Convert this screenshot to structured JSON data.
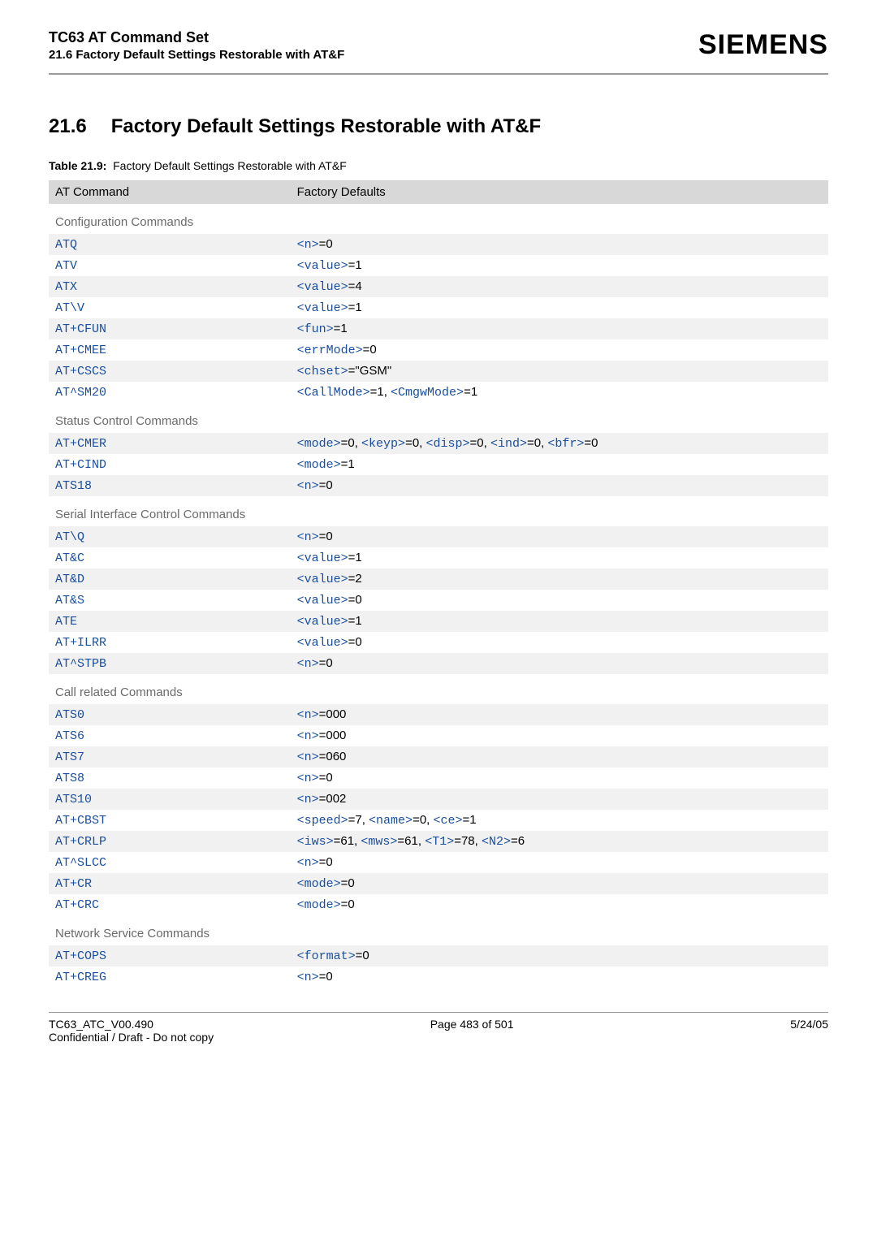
{
  "header": {
    "title": "TC63 AT Command Set",
    "subtitle": "21.6 Factory Default Settings Restorable with AT&F",
    "logo": "SIEMENS"
  },
  "section": {
    "number": "21.6",
    "title": "Factory Default Settings Restorable with AT&F"
  },
  "table_caption": {
    "label": "Table 21.9:",
    "text": "Factory Default Settings Restorable with AT&F"
  },
  "table": {
    "headers": [
      "AT Command",
      "Factory Defaults"
    ],
    "groups": [
      {
        "name": "Configuration Commands",
        "rows": [
          {
            "cmd": "ATQ",
            "parts": [
              {
                "t": "tag",
                "v": "<n>"
              },
              {
                "t": "plain",
                "v": "=0"
              }
            ]
          },
          {
            "cmd": "ATV",
            "parts": [
              {
                "t": "tag",
                "v": "<value>"
              },
              {
                "t": "plain",
                "v": "=1"
              }
            ]
          },
          {
            "cmd": "ATX",
            "parts": [
              {
                "t": "tag",
                "v": "<value>"
              },
              {
                "t": "plain",
                "v": "=4"
              }
            ]
          },
          {
            "cmd": "AT\\V",
            "parts": [
              {
                "t": "tag",
                "v": "<value>"
              },
              {
                "t": "plain",
                "v": "=1"
              }
            ]
          },
          {
            "cmd": "AT+CFUN",
            "parts": [
              {
                "t": "tag",
                "v": "<fun>"
              },
              {
                "t": "plain",
                "v": "=1"
              }
            ]
          },
          {
            "cmd": "AT+CMEE",
            "parts": [
              {
                "t": "tag",
                "v": "<errMode>"
              },
              {
                "t": "plain",
                "v": "=0"
              }
            ]
          },
          {
            "cmd": "AT+CSCS",
            "parts": [
              {
                "t": "tag",
                "v": "<chset>"
              },
              {
                "t": "plain",
                "v": "=\"GSM\""
              }
            ]
          },
          {
            "cmd": "AT^SM20",
            "parts": [
              {
                "t": "tag",
                "v": "<CallMode>"
              },
              {
                "t": "plain",
                "v": "=1, "
              },
              {
                "t": "tag",
                "v": "<CmgwMode>"
              },
              {
                "t": "plain",
                "v": "=1"
              }
            ]
          }
        ]
      },
      {
        "name": "Status Control Commands",
        "rows": [
          {
            "cmd": "AT+CMER",
            "parts": [
              {
                "t": "tag",
                "v": "<mode>"
              },
              {
                "t": "plain",
                "v": "=0, "
              },
              {
                "t": "tag",
                "v": "<keyp>"
              },
              {
                "t": "plain",
                "v": "=0, "
              },
              {
                "t": "tag",
                "v": "<disp>"
              },
              {
                "t": "plain",
                "v": "=0, "
              },
              {
                "t": "tag",
                "v": "<ind>"
              },
              {
                "t": "plain",
                "v": "=0, "
              },
              {
                "t": "tag",
                "v": "<bfr>"
              },
              {
                "t": "plain",
                "v": "=0"
              }
            ]
          },
          {
            "cmd": "AT+CIND",
            "parts": [
              {
                "t": "tag",
                "v": "<mode>"
              },
              {
                "t": "plain",
                "v": "=1"
              }
            ]
          },
          {
            "cmd": "ATS18",
            "parts": [
              {
                "t": "tag",
                "v": "<n>"
              },
              {
                "t": "plain",
                "v": "=0"
              }
            ]
          }
        ]
      },
      {
        "name": "Serial Interface Control Commands",
        "rows": [
          {
            "cmd": "AT\\Q",
            "parts": [
              {
                "t": "tag",
                "v": "<n>"
              },
              {
                "t": "plain",
                "v": "=0"
              }
            ]
          },
          {
            "cmd": "AT&C",
            "parts": [
              {
                "t": "tag",
                "v": "<value>"
              },
              {
                "t": "plain",
                "v": "=1"
              }
            ]
          },
          {
            "cmd": "AT&D",
            "parts": [
              {
                "t": "tag",
                "v": "<value>"
              },
              {
                "t": "plain",
                "v": "=2"
              }
            ]
          },
          {
            "cmd": "AT&S",
            "parts": [
              {
                "t": "tag",
                "v": "<value>"
              },
              {
                "t": "plain",
                "v": "=0"
              }
            ]
          },
          {
            "cmd": "ATE",
            "parts": [
              {
                "t": "tag",
                "v": "<value>"
              },
              {
                "t": "plain",
                "v": "=1"
              }
            ]
          },
          {
            "cmd": "AT+ILRR",
            "parts": [
              {
                "t": "tag",
                "v": "<value>"
              },
              {
                "t": "plain",
                "v": "=0"
              }
            ]
          },
          {
            "cmd": "AT^STPB",
            "parts": [
              {
                "t": "tag",
                "v": "<n>"
              },
              {
                "t": "plain",
                "v": "=0"
              }
            ]
          }
        ]
      },
      {
        "name": "Call related Commands",
        "rows": [
          {
            "cmd": "ATS0",
            "parts": [
              {
                "t": "tag",
                "v": "<n>"
              },
              {
                "t": "plain",
                "v": "=000"
              }
            ]
          },
          {
            "cmd": "ATS6",
            "parts": [
              {
                "t": "tag",
                "v": "<n>"
              },
              {
                "t": "plain",
                "v": "=000"
              }
            ]
          },
          {
            "cmd": "ATS7",
            "parts": [
              {
                "t": "tag",
                "v": "<n>"
              },
              {
                "t": "plain",
                "v": "=060"
              }
            ]
          },
          {
            "cmd": "ATS8",
            "parts": [
              {
                "t": "tag",
                "v": "<n>"
              },
              {
                "t": "plain",
                "v": "=0"
              }
            ]
          },
          {
            "cmd": "ATS10",
            "parts": [
              {
                "t": "tag",
                "v": "<n>"
              },
              {
                "t": "plain",
                "v": "=002"
              }
            ]
          },
          {
            "cmd": "AT+CBST",
            "parts": [
              {
                "t": "tag",
                "v": "<speed>"
              },
              {
                "t": "plain",
                "v": "=7, "
              },
              {
                "t": "tag",
                "v": "<name>"
              },
              {
                "t": "plain",
                "v": "=0, "
              },
              {
                "t": "tag",
                "v": "<ce>"
              },
              {
                "t": "plain",
                "v": "=1"
              }
            ]
          },
          {
            "cmd": "AT+CRLP",
            "parts": [
              {
                "t": "tag",
                "v": "<iws>"
              },
              {
                "t": "plain",
                "v": "=61, "
              },
              {
                "t": "tag",
                "v": "<mws>"
              },
              {
                "t": "plain",
                "v": "=61, "
              },
              {
                "t": "tag",
                "v": "<T1>"
              },
              {
                "t": "plain",
                "v": "=78, "
              },
              {
                "t": "tag",
                "v": "<N2>"
              },
              {
                "t": "plain",
                "v": "=6"
              }
            ]
          },
          {
            "cmd": "AT^SLCC",
            "parts": [
              {
                "t": "tag",
                "v": "<n>"
              },
              {
                "t": "plain",
                "v": "=0"
              }
            ]
          },
          {
            "cmd": "AT+CR",
            "parts": [
              {
                "t": "tag",
                "v": "<mode>"
              },
              {
                "t": "plain",
                "v": "=0"
              }
            ]
          },
          {
            "cmd": "AT+CRC",
            "parts": [
              {
                "t": "tag",
                "v": "<mode>"
              },
              {
                "t": "plain",
                "v": "=0"
              }
            ]
          }
        ]
      },
      {
        "name": "Network Service Commands",
        "rows": [
          {
            "cmd": "AT+COPS",
            "parts": [
              {
                "t": "tag",
                "v": "<format>"
              },
              {
                "t": "plain",
                "v": "=0"
              }
            ]
          },
          {
            "cmd": "AT+CREG",
            "parts": [
              {
                "t": "tag",
                "v": "<n>"
              },
              {
                "t": "plain",
                "v": "=0"
              }
            ]
          }
        ]
      }
    ]
  },
  "footer": {
    "left": "TC63_ATC_V00.490",
    "center": "Page 483 of 501",
    "right": "5/24/05",
    "line2": "Confidential / Draft - Do not copy"
  },
  "colors": {
    "link": "#1a4fa0",
    "group_text": "#6a6a6a",
    "zebra_a": "#f1f1f1",
    "zebra_b": "#ffffff",
    "header_bg": "#d8d8d8"
  }
}
